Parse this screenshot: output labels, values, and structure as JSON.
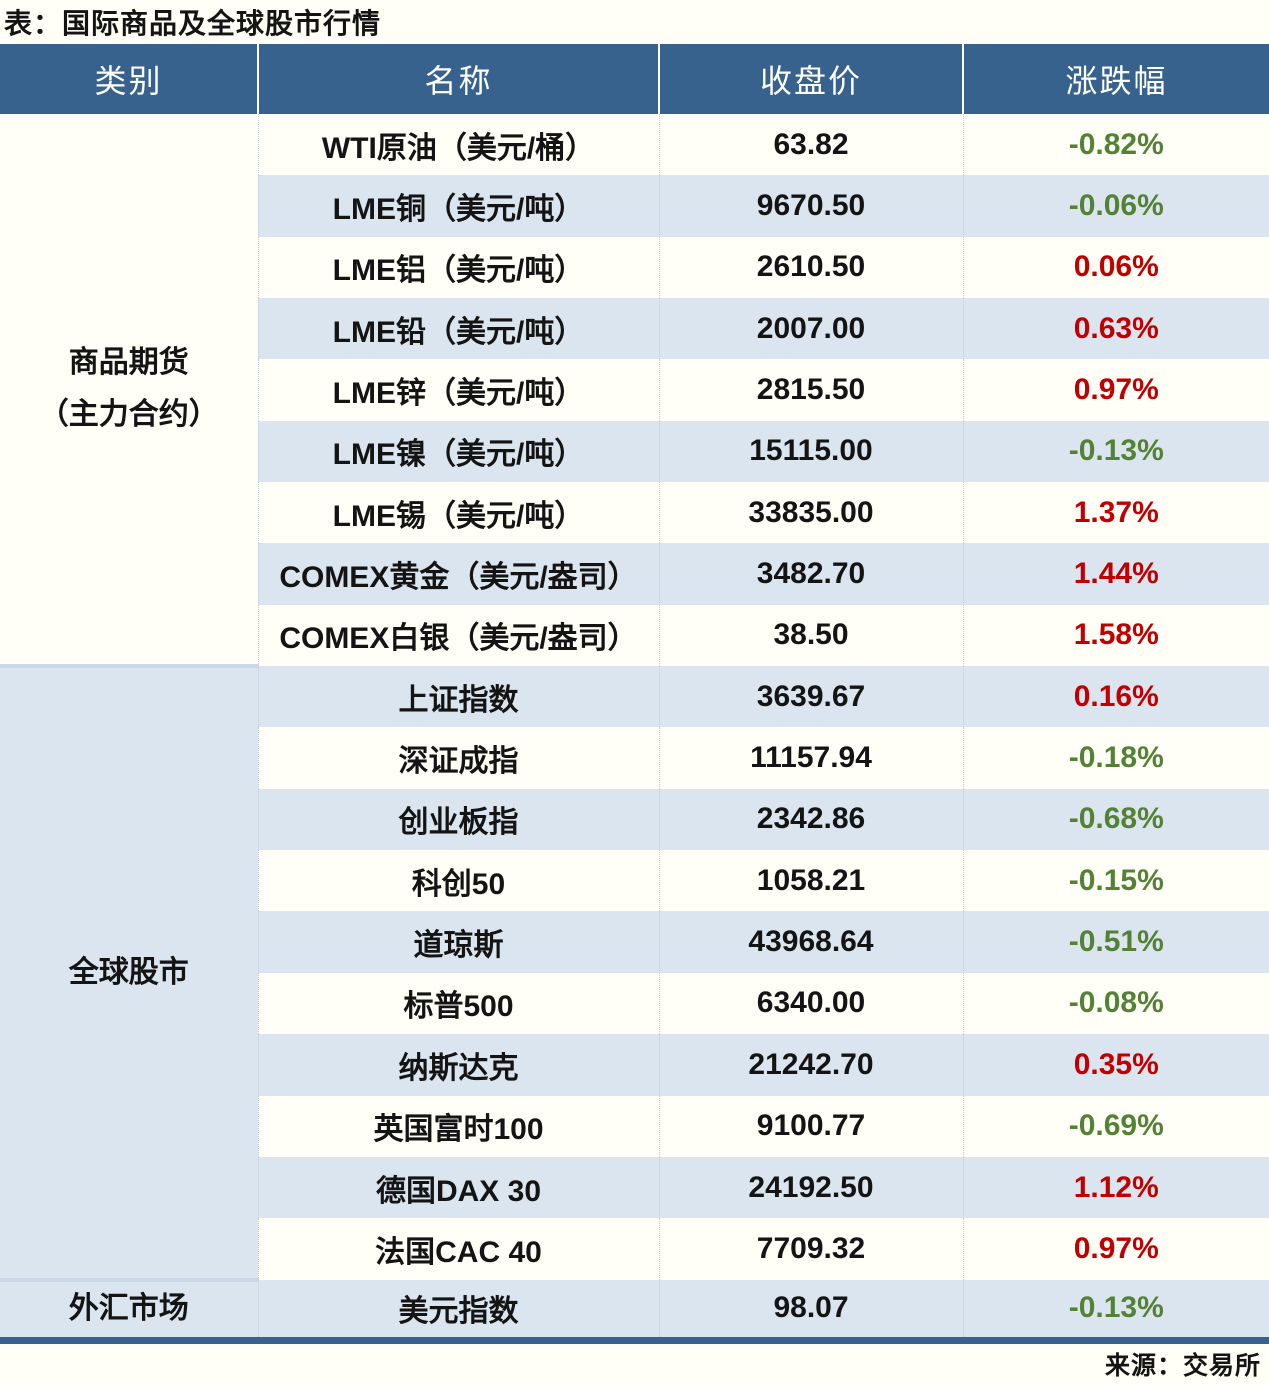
{
  "title": "表：国际商品及全球股市行情",
  "source": "来源：交易所",
  "colors": {
    "header_bg": "#38628e",
    "header_text": "#ffffff",
    "row_alt": "#dbe5f0",
    "row_base": "#fffef7",
    "up_red": "#c00000",
    "down_green": "#548235",
    "section_divider": "#c9d7e6",
    "bottom_border": "#38628e"
  },
  "chart_data": {
    "type": "table",
    "title": "表：国际商品及全球股市行情",
    "columns": [
      "类别",
      "名称",
      "收盘价",
      "涨跌幅"
    ],
    "sections": [
      {
        "category_lines": [
          "商品期货",
          "（主力合约）"
        ],
        "rows": [
          {
            "name": "WTI原油（美元/桶）",
            "close": "63.82",
            "change": "-0.82%",
            "direction": "down"
          },
          {
            "name": "LME铜（美元/吨）",
            "close": "9670.50",
            "change": "-0.06%",
            "direction": "down"
          },
          {
            "name": "LME铝（美元/吨）",
            "close": "2610.50",
            "change": "0.06%",
            "direction": "up"
          },
          {
            "name": "LME铅（美元/吨）",
            "close": "2007.00",
            "change": "0.63%",
            "direction": "up"
          },
          {
            "name": "LME锌（美元/吨）",
            "close": "2815.50",
            "change": "0.97%",
            "direction": "up"
          },
          {
            "name": "LME镍（美元/吨）",
            "close": "15115.00",
            "change": "-0.13%",
            "direction": "down"
          },
          {
            "name": "LME锡（美元/吨）",
            "close": "33835.00",
            "change": "1.37%",
            "direction": "up"
          },
          {
            "name": "COMEX黄金（美元/盎司）",
            "close": "3482.70",
            "change": "1.44%",
            "direction": "up"
          },
          {
            "name": "COMEX白银（美元/盎司）",
            "close": "38.50",
            "change": "1.58%",
            "direction": "up"
          }
        ]
      },
      {
        "category_lines": [
          "全球股市"
        ],
        "rows": [
          {
            "name": "上证指数",
            "close": "3639.67",
            "change": "0.16%",
            "direction": "up"
          },
          {
            "name": "深证成指",
            "close": "11157.94",
            "change": "-0.18%",
            "direction": "down"
          },
          {
            "name": "创业板指",
            "close": "2342.86",
            "change": "-0.68%",
            "direction": "down"
          },
          {
            "name": "科创50",
            "close": "1058.21",
            "change": "-0.15%",
            "direction": "down"
          },
          {
            "name": "道琼斯",
            "close": "43968.64",
            "change": "-0.51%",
            "direction": "down"
          },
          {
            "name": "标普500",
            "close": "6340.00",
            "change": "-0.08%",
            "direction": "down"
          },
          {
            "name": "纳斯达克",
            "close": "21242.70",
            "change": "0.35%",
            "direction": "up"
          },
          {
            "name": "英国富时100",
            "close": "9100.77",
            "change": "-0.69%",
            "direction": "down"
          },
          {
            "name": "德国DAX 30",
            "close": "24192.50",
            "change": "1.12%",
            "direction": "up"
          },
          {
            "name": "法国CAC 40",
            "close": "7709.32",
            "change": "0.97%",
            "direction": "up"
          }
        ]
      },
      {
        "category_lines": [
          "外汇市场"
        ],
        "rows": [
          {
            "name": "美元指数",
            "close": "98.07",
            "change": "-0.13%",
            "direction": "down"
          }
        ]
      }
    ]
  }
}
